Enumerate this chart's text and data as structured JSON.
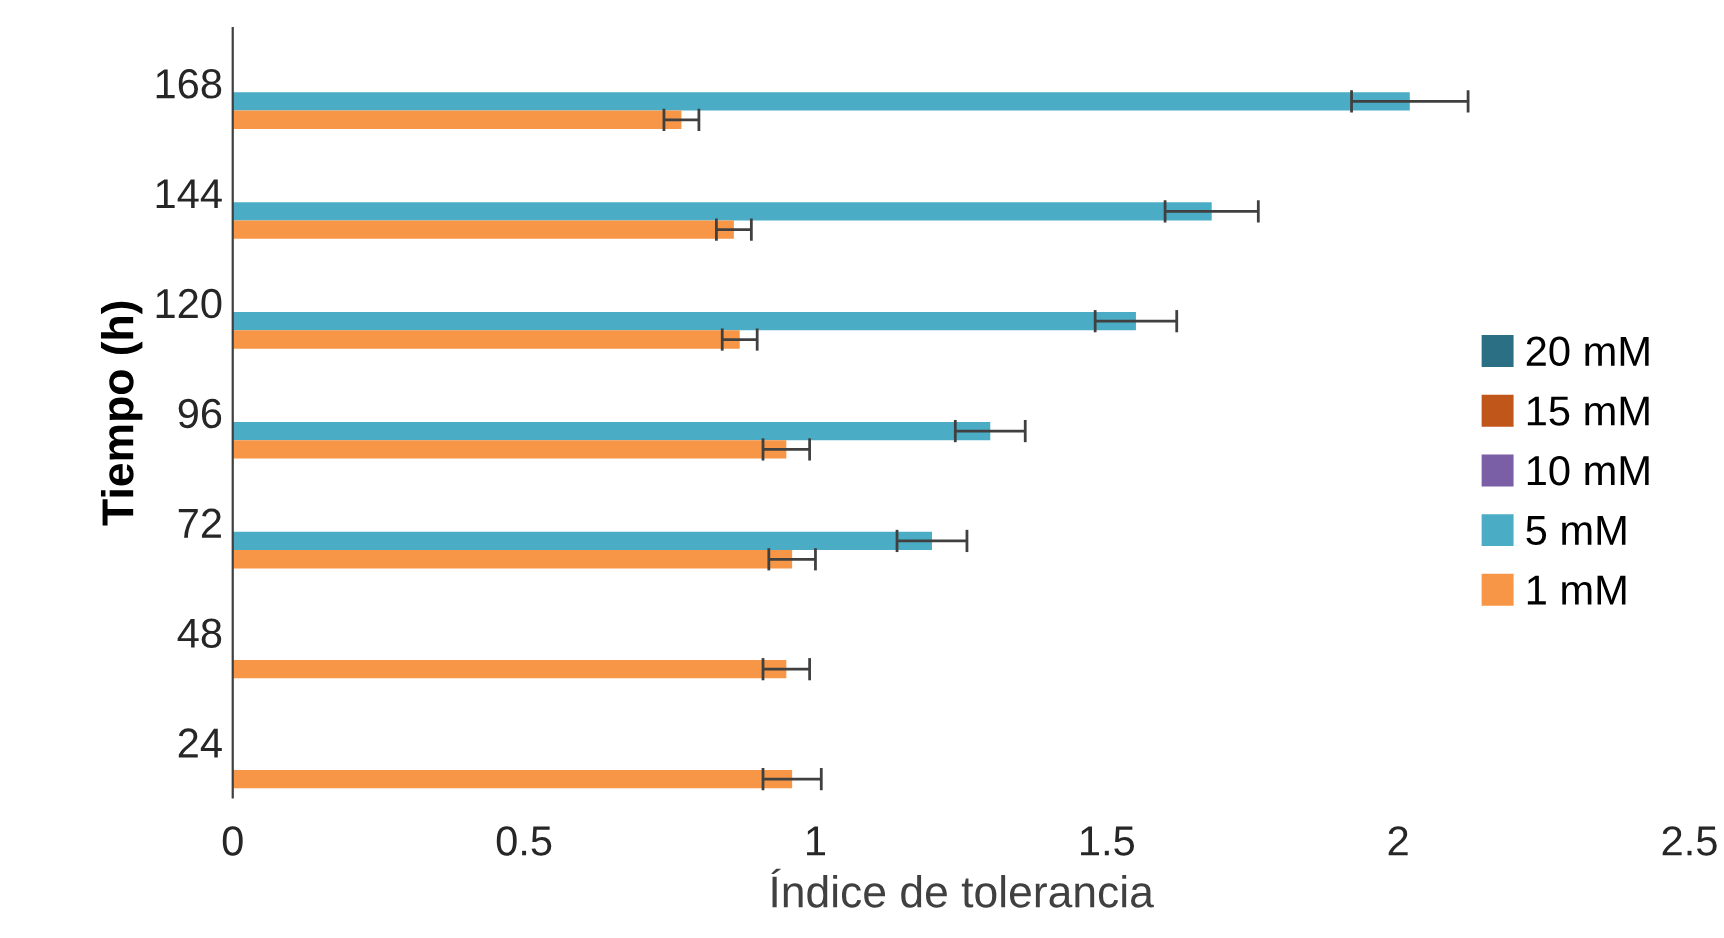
{
  "chart_data": {
    "type": "bar",
    "orientation": "horizontal",
    "xlabel": "Índice de tolerancia",
    "ylabel": "Tiempo (h)",
    "categories": [
      "168",
      "144",
      "120",
      "96",
      "72",
      "48",
      "24"
    ],
    "series": [
      {
        "name": "20 mM",
        "color": "#2a6f83",
        "values": [
          null,
          null,
          null,
          null,
          null,
          null,
          null
        ]
      },
      {
        "name": "15 mM",
        "color": "#c0561a",
        "values": [
          null,
          null,
          null,
          null,
          null,
          null,
          null
        ]
      },
      {
        "name": "10 mM",
        "color": "#7b5fa6",
        "values": [
          null,
          null,
          null,
          null,
          null,
          null,
          null
        ]
      },
      {
        "name": "5 mM",
        "color": "#4bacc6",
        "values": [
          2.02,
          1.68,
          1.55,
          1.3,
          1.2,
          null,
          null
        ],
        "errors": [
          0.1,
          0.08,
          0.07,
          0.06,
          0.06,
          null,
          null
        ]
      },
      {
        "name": "1 mM",
        "color": "#f79646",
        "values": [
          0.77,
          0.86,
          0.87,
          0.95,
          0.96,
          0.95,
          0.96
        ],
        "errors": [
          0.03,
          0.03,
          0.03,
          0.04,
          0.04,
          0.04,
          0.05
        ]
      }
    ],
    "xlim": [
      0,
      2.5
    ],
    "xticks": [
      0,
      0.5,
      1,
      1.5,
      2,
      2.5
    ],
    "legend": "right",
    "grid": false
  }
}
